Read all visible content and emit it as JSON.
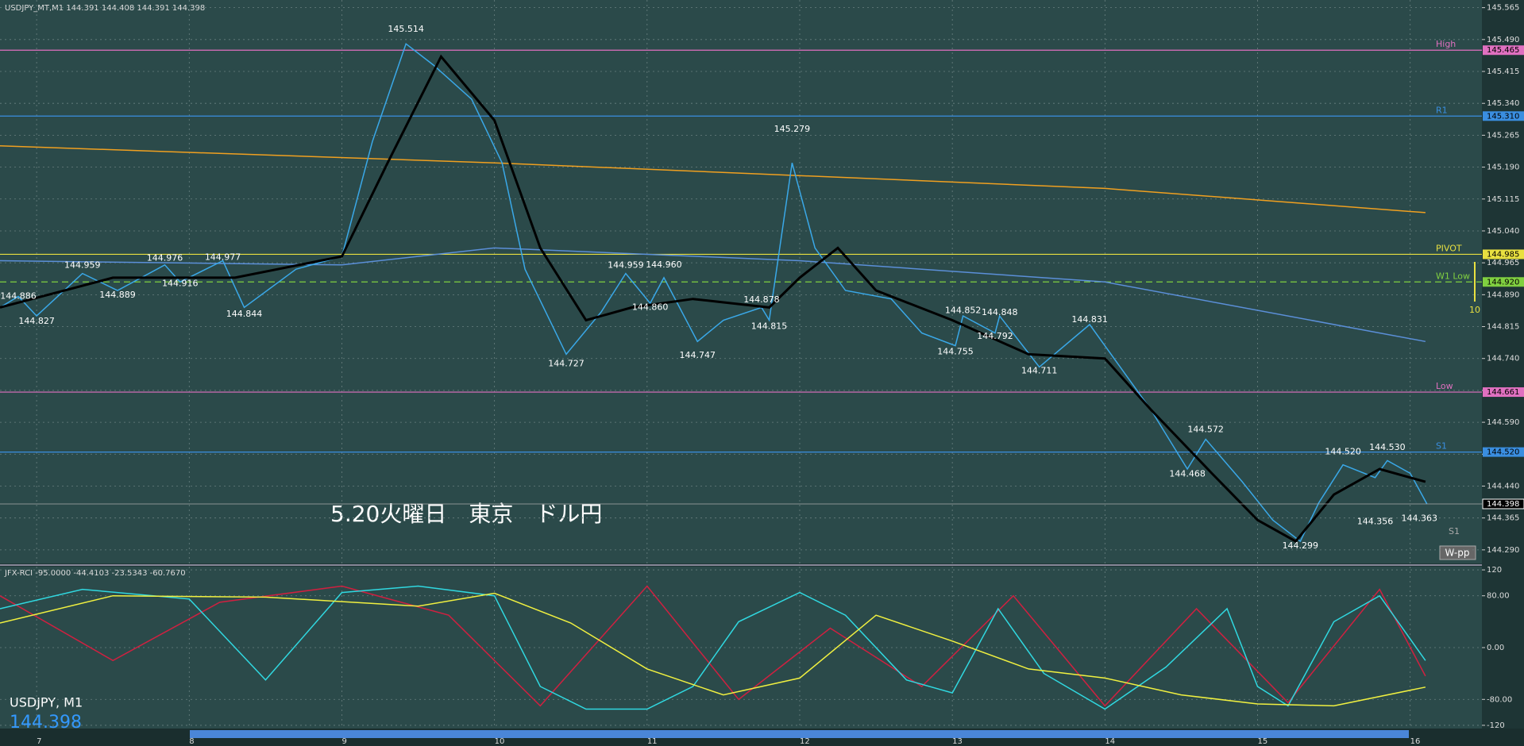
{
  "header": "USDJPY_MT,M1  144.391 144.408 144.391 144.398",
  "overlay_text": "5.20火曜日　東京　ドル円",
  "symbol": "USDJPY, M1",
  "last_price": 144.398,
  "button": "W-pp",
  "s1_small": "S1",
  "arrow_label": "10",
  "chart_data": [
    {
      "type": "line",
      "xlim": [
        6.76,
        16.47
      ],
      "xticks": [
        7,
        8,
        9,
        10,
        11,
        12,
        13,
        14,
        15,
        16
      ],
      "ylim": [
        144.258,
        145.583
      ],
      "yticks": [
        145.565,
        {
          "value": 145.49,
          "label": "145.490"
        },
        145.415,
        {
          "value": 145.34,
          "label": "145.340"
        },
        145.265,
        {
          "value": 145.19,
          "label": "145.190"
        },
        145.115,
        {
          "value": 145.04,
          "label": "145.040"
        },
        144.965,
        {
          "value": 144.89,
          "label": "144.890"
        },
        144.815,
        {
          "value": 144.74,
          "label": "144.740"
        },
        144.665,
        {
          "value": 144.59,
          "label": "144.590"
        },
        144.515,
        {
          "value": 144.44,
          "label": "144.440"
        },
        144.365,
        {
          "value": 144.29,
          "label": "144.290"
        }
      ],
      "grid": true,
      "series": [
        {
          "color": "#f0a020",
          "x": [
            6.76,
            10,
            14,
            16.1
          ],
          "values": [
            145.24,
            145.2,
            145.14,
            145.083
          ]
        },
        {
          "color": "#5b8fd8",
          "x": [
            6.76,
            9,
            10,
            12,
            14,
            16.1
          ],
          "values": [
            144.97,
            144.96,
            145.0,
            144.97,
            144.92,
            144.78
          ]
        },
        {
          "color": "#3aa8e8",
          "x": [
            6.76,
            6.88,
            7.0,
            7.3,
            7.53,
            7.84,
            7.94,
            8.22,
            8.36,
            8.7,
            9.0,
            9.2,
            9.42,
            9.6,
            9.85,
            10.05,
            10.2,
            10.47,
            10.7,
            10.86,
            11.02,
            11.11,
            11.33,
            11.5,
            11.75,
            11.8,
            11.95,
            12.1,
            12.3,
            12.6,
            12.8,
            13.02,
            13.07,
            13.28,
            13.31,
            13.57,
            13.9,
            14.1,
            14.3,
            14.54,
            14.66,
            14.9,
            15.1,
            15.28,
            15.4,
            15.56,
            15.77,
            15.85,
            16.0,
            16.11
          ],
          "values": [
            144.86,
            144.886,
            144.84,
            144.94,
            144.9,
            144.96,
            144.92,
            144.97,
            144.86,
            144.95,
            144.98,
            145.25,
            145.48,
            145.43,
            145.35,
            145.2,
            144.95,
            144.75,
            144.85,
            144.94,
            144.87,
            144.93,
            144.78,
            144.83,
            144.86,
            144.83,
            145.2,
            145.0,
            144.9,
            144.88,
            144.8,
            144.77,
            144.84,
            144.8,
            144.84,
            144.72,
            144.82,
            144.72,
            144.62,
            144.48,
            144.55,
            144.45,
            144.36,
            144.31,
            144.4,
            144.49,
            144.46,
            144.5,
            144.47,
            144.398
          ]
        },
        {
          "color": "#000000",
          "x": [
            6.76,
            7.5,
            8.3,
            9.0,
            9.3,
            9.65,
            10.0,
            10.3,
            10.6,
            10.9,
            11.3,
            11.8,
            12.0,
            12.25,
            12.5,
            13.0,
            13.5,
            14.0,
            14.3,
            14.7,
            15.0,
            15.25,
            15.5,
            15.8,
            16.1
          ],
          "values": [
            144.86,
            144.93,
            144.93,
            144.98,
            145.2,
            145.45,
            145.3,
            145.0,
            144.83,
            144.86,
            144.88,
            144.86,
            144.93,
            145.0,
            144.9,
            144.83,
            144.75,
            144.74,
            144.62,
            144.47,
            144.36,
            144.31,
            144.42,
            144.48,
            144.45
          ]
        }
      ],
      "levels": [
        {
          "name": "High",
          "value": 145.465,
          "color": "#e070c0"
        },
        {
          "name": "R1",
          "value": {
            "value": 145.31,
            "label": "145.310"
          },
          "color": "#3a8ee0"
        },
        {
          "name": "PIVOT",
          "value": 144.985,
          "color": "#e8e040"
        },
        {
          "name": "W1 Low",
          "value": {
            "value": 144.92,
            "label": "144.920"
          },
          "color": "#80d040"
        },
        {
          "name": "Low",
          "value": 144.661,
          "color": "#e070c0"
        },
        {
          "name": "S1",
          "value": {
            "value": 144.52,
            "label": "144.520"
          },
          "color": "#3a8ee0"
        }
      ],
      "current": 144.398,
      "annotations": [
        {
          "x": 6.88,
          "y": 144.886
        },
        {
          "x": 7.0,
          "y": 144.827
        },
        {
          "x": 7.3,
          "y": 144.959
        },
        {
          "x": 7.53,
          "y": 144.889
        },
        {
          "x": 7.84,
          "y": 144.976
        },
        {
          "x": 7.94,
          "y": 144.916
        },
        {
          "x": 8.22,
          "y": 144.977
        },
        {
          "x": 8.36,
          "y": 144.844
        },
        {
          "x": 9.42,
          "y": 145.514
        },
        {
          "x": 10.47,
          "y": 144.727
        },
        {
          "x": 10.86,
          "y": 144.959
        },
        {
          "x": 11.11,
          "y": 144.96,
          "label": "144.960"
        },
        {
          "x": 11.02,
          "y": 144.86,
          "label": "144.860"
        },
        {
          "x": 11.33,
          "y": 144.747
        },
        {
          "x": 11.75,
          "y": 144.878
        },
        {
          "x": 11.8,
          "y": 144.815
        },
        {
          "x": 11.95,
          "y": 145.279
        },
        {
          "x": 13.02,
          "y": 144.755
        },
        {
          "x": 13.07,
          "y": 144.852
        },
        {
          "x": 13.28,
          "y": 144.792
        },
        {
          "x": 13.31,
          "y": 144.848
        },
        {
          "x": 13.57,
          "y": 144.711
        },
        {
          "x": 13.9,
          "y": 144.831
        },
        {
          "x": 14.54,
          "y": 144.468
        },
        {
          "x": 14.66,
          "y": 144.572
        },
        {
          "x": 15.28,
          "y": 144.299
        },
        {
          "x": 15.56,
          "y": 144.52,
          "label": "144.520"
        },
        {
          "x": 15.77,
          "y": 144.356
        },
        {
          "x": 15.85,
          "y": 144.53,
          "label": "144.530"
        },
        {
          "x": 16.06,
          "y": 144.363
        }
      ]
    },
    {
      "type": "line",
      "title": "JFX-RCI -95.0000 -44.4103 -23.5343 -60.7670",
      "xlim": [
        6.76,
        16.47
      ],
      "ylim": [
        -125,
        125
      ],
      "yticks": [
        120,
        {
          "value": 80,
          "label": "80.00"
        },
        {
          "value": 0,
          "label": "0.00"
        },
        {
          "value": -80,
          "label": "-80.00"
        },
        -120
      ],
      "series": [
        {
          "color": "#d02040",
          "x": [
            6.76,
            7.5,
            8.2,
            9.0,
            9.7,
            10.3,
            11.0,
            11.6,
            12.2,
            12.8,
            13.4,
            14.0,
            14.6,
            15.2,
            15.8,
            16.1
          ],
          "values": [
            80,
            -20,
            70,
            95,
            50,
            -90,
            95,
            -80,
            30,
            -60,
            80,
            -90,
            60,
            -85,
            90,
            -44
          ]
        },
        {
          "color": "#30d8e0",
          "x": [
            6.76,
            7.3,
            8.0,
            8.5,
            9.0,
            9.5,
            10.0,
            10.3,
            10.6,
            11.0,
            11.3,
            11.6,
            12.0,
            12.3,
            12.7,
            13.0,
            13.3,
            13.6,
            14.0,
            14.4,
            14.8,
            15.0,
            15.2,
            15.5,
            15.8,
            16.1
          ],
          "values": [
            60,
            90,
            75,
            -50,
            85,
            95,
            80,
            -60,
            -95,
            -95,
            -60,
            40,
            85,
            50,
            -50,
            -70,
            60,
            -40,
            -95,
            -30,
            60,
            -60,
            -90,
            40,
            80,
            -20
          ]
        },
        {
          "color": "#f0f040",
          "x": [
            6.76,
            7.5,
            8.5,
            9.5,
            10.0,
            10.5,
            11.0,
            11.5,
            12.0,
            12.5,
            13.0,
            13.5,
            14.0,
            14.5,
            15.0,
            15.5,
            16.1
          ],
          "values": [
            38,
            80,
            78,
            64,
            84,
            38,
            -33,
            -73,
            -47,
            50,
            10,
            -33,
            -47,
            -73,
            -87,
            -90,
            -61
          ]
        }
      ]
    }
  ]
}
